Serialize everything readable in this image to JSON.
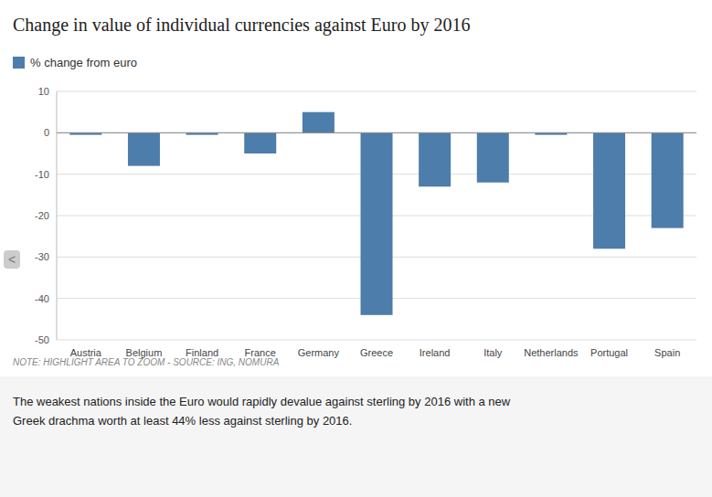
{
  "chart_data": {
    "type": "bar",
    "title": "Change in value of individual currencies against Euro by 2016",
    "categories": [
      "Austria",
      "Belgium",
      "Finland",
      "France",
      "Germany",
      "Greece",
      "Ireland",
      "Italy",
      "Netherlands",
      "Portugal",
      "Spain"
    ],
    "series": [
      {
        "name": "% change from euro",
        "color": "#4d7daa",
        "values": [
          -0.5,
          -8,
          -0.5,
          -5,
          5,
          -44,
          -13,
          -12,
          -0.5,
          -28,
          -23
        ]
      }
    ],
    "ylim": [
      -50,
      10
    ],
    "yticks": [
      -50,
      -40,
      -30,
      -20,
      -10,
      0,
      10
    ],
    "grid": true,
    "legend": "top",
    "annotations": [
      "NOTE: HIGHLIGHT AREA TO ZOOM - SOURCE: ING, NOMURA",
      "The weakest nations inside the Euro would rapidly devalue against sterling by 2016 with a new\nGreek drachma worth at least 44% less against sterling by 2016.",
      "<"
    ]
  }
}
